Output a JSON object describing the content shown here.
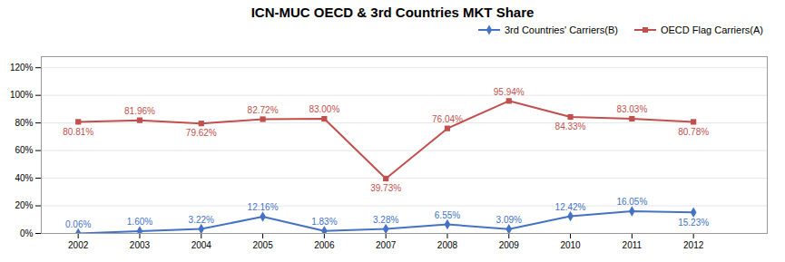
{
  "chart_data": {
    "type": "line",
    "title": "ICN-MUC OECD & 3rd Countries MKT Share",
    "x": [
      2002,
      2003,
      2004,
      2005,
      2006,
      2007,
      2008,
      2009,
      2010,
      2011,
      2012
    ],
    "xlim": [
      2001.4,
      2013.2
    ],
    "xticks": [
      2002,
      2003,
      2004,
      2005,
      2006,
      2007,
      2008,
      2009,
      2010,
      2011,
      2012
    ],
    "ylim": [
      0.0,
      1.28
    ],
    "yticks": [
      {
        "value": 0.0,
        "label": "0%"
      },
      {
        "value": 0.2,
        "label": "20%"
      },
      {
        "value": 0.4,
        "label": "40%"
      },
      {
        "value": 0.6,
        "label": "60%"
      },
      {
        "value": 0.8,
        "label": "80%"
      },
      {
        "value": 1.0,
        "label": "100%"
      },
      {
        "value": 1.2,
        "label": "120%"
      }
    ],
    "grid": true,
    "legend": "right",
    "data_labels": true,
    "series": [
      {
        "name": "3rd Countries' Carriers(B)",
        "color": "#4472C4",
        "marker": "diamond",
        "values": [
          0.0006,
          0.016,
          0.0322,
          0.1216,
          0.0183,
          0.0328,
          0.0655,
          0.0309,
          0.1242,
          0.1605,
          0.1523
        ],
        "value_labels": [
          "0.06%",
          "1.60%",
          "3.22%",
          "12.16%",
          "1.83%",
          "3.28%",
          "6.55%",
          "3.09%",
          "12.42%",
          "16.05%",
          "15.23%"
        ]
      },
      {
        "name": "OECD Flag Carriers(A)",
        "color": "#C0504D",
        "marker": "square",
        "values": [
          0.8081,
          0.8196,
          0.7962,
          0.8272,
          0.83,
          0.3973,
          0.7604,
          0.9594,
          0.8433,
          0.8303,
          0.8078
        ],
        "value_labels": [
          "80.81%",
          "81.96%",
          "79.62%",
          "82.72%",
          "83.00%",
          "39.73%",
          "76.04%",
          "95.94%",
          "84.33%",
          "83.03%",
          "80.78%"
        ]
      }
    ]
  }
}
